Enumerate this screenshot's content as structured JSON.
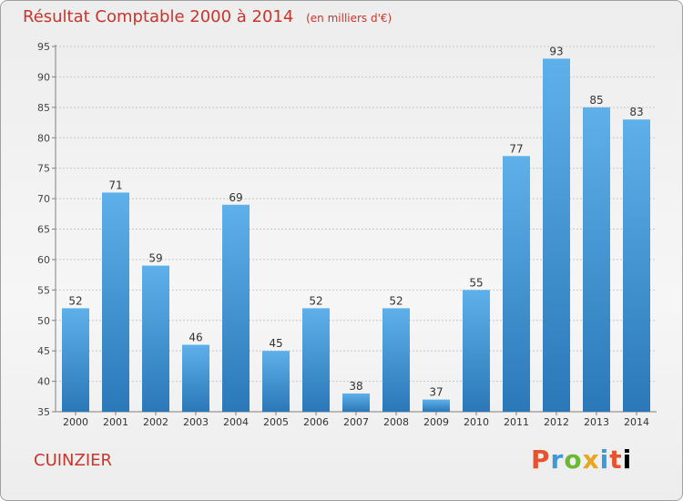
{
  "header": {
    "title": "Résultat Comptable 2000 à 2014",
    "subtitle": "(en milliers d'€)"
  },
  "footer": {
    "commune": "CUINZIER",
    "logo_text": "Proxiti"
  },
  "colors": {
    "title": "#c8352c",
    "bar_top": "#5eb0ea",
    "bar_bottom": "#2b78b8",
    "grid": "#c8c8c8"
  },
  "chart_data": {
    "type": "bar",
    "title": "Résultat Comptable 2000 à 2014",
    "subtitle": "(en milliers d'€)",
    "xlabel": "",
    "ylabel": "",
    "ylim": [
      35,
      95
    ],
    "ytick_step": 5,
    "grid": true,
    "categories": [
      "2000",
      "2001",
      "2002",
      "2003",
      "2004",
      "2005",
      "2006",
      "2007",
      "2008",
      "2009",
      "2010",
      "2011",
      "2012",
      "2013",
      "2014"
    ],
    "values": [
      52,
      71,
      59,
      46,
      69,
      45,
      52,
      38,
      52,
      37,
      55,
      77,
      93,
      85,
      83
    ]
  }
}
